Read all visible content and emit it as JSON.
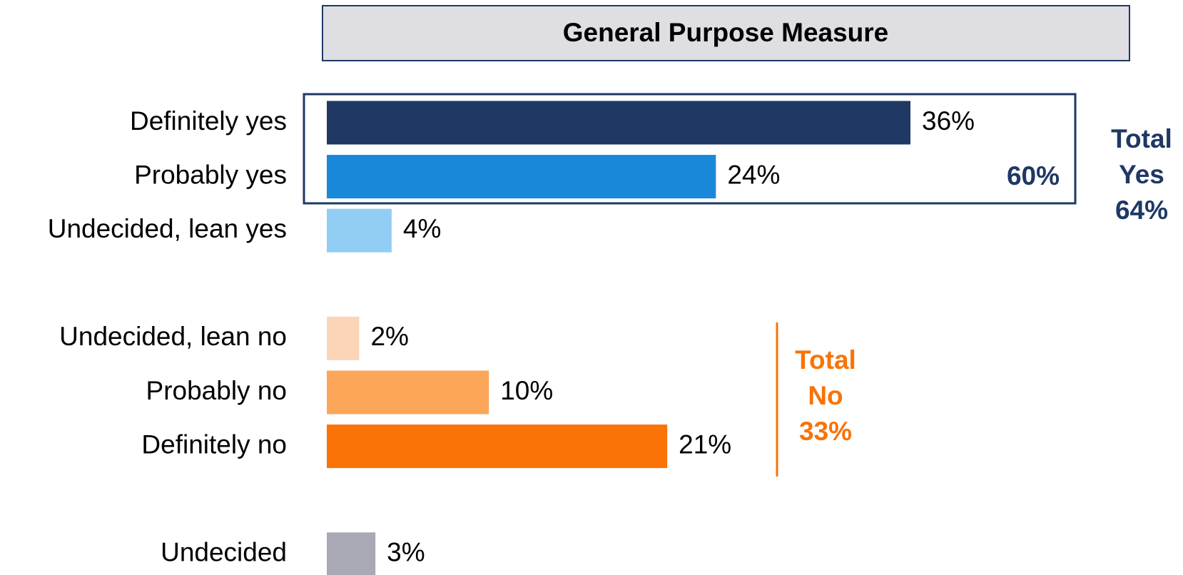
{
  "chart_data": {
    "type": "bar",
    "orientation": "horizontal",
    "title": "General Purpose Measure",
    "categories": [
      "Definitely yes",
      "Probably yes",
      "Undecided, lean yes",
      null,
      "Undecided, lean no",
      "Probably no",
      "Definitely no",
      null,
      "Undecided"
    ],
    "values": [
      36,
      24,
      4,
      null,
      2,
      10,
      21,
      null,
      3
    ],
    "value_labels": [
      "36%",
      "24%",
      "4%",
      null,
      "2%",
      "10%",
      "21%",
      null,
      "3%"
    ],
    "colors": [
      "#1f3864",
      "#1a88d8",
      "#92cdf4",
      null,
      "#fcd5b8",
      "#fca659",
      "#f97306",
      null,
      "#a8a9b5"
    ],
    "annotations": [
      {
        "lines": [
          "60%"
        ],
        "color": "#1f3864"
      },
      {
        "lines": [
          "Total",
          "Yes",
          "64%"
        ],
        "color": "#1f3864"
      },
      {
        "lines": [
          "Total",
          "No",
          "33%"
        ],
        "color": "#f97306"
      }
    ]
  }
}
